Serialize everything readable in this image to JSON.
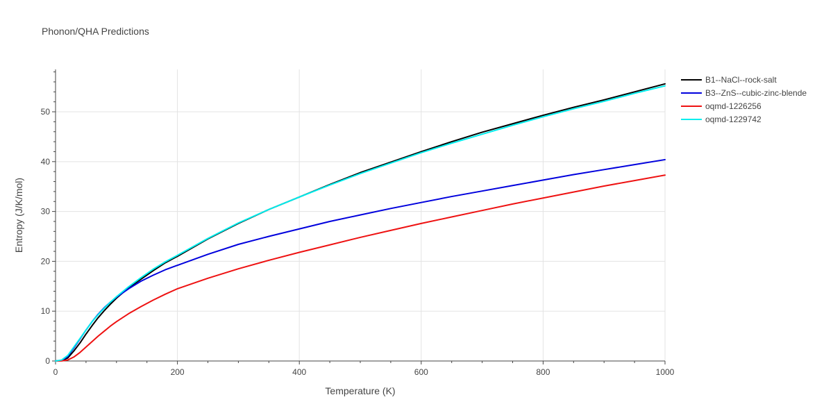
{
  "chart_data": {
    "type": "line",
    "title": "Phonon/QHA Predictions",
    "xlabel": "Temperature (K)",
    "ylabel": "Entropy (J/K/mol)",
    "xlim": [
      0,
      1000
    ],
    "ylim": [
      0,
      58.5
    ],
    "xticks": [
      0,
      200,
      400,
      600,
      800,
      1000
    ],
    "yticks": [
      0,
      10,
      20,
      30,
      40,
      50
    ],
    "grid": true,
    "legend_position": "top-right",
    "series": [
      {
        "name": "B1--NaCl--rock-salt",
        "color": "#000000",
        "x": [
          0,
          10,
          20,
          30,
          40,
          50,
          60,
          70,
          80,
          90,
          100,
          120,
          140,
          160,
          180,
          200,
          250,
          300,
          350,
          400,
          450,
          500,
          550,
          600,
          650,
          700,
          750,
          800,
          850,
          900,
          950,
          1000
        ],
        "y": [
          0,
          0.1,
          0.6,
          2.0,
          3.6,
          5.4,
          7.1,
          8.7,
          10.1,
          11.4,
          12.6,
          14.7,
          16.4,
          18.1,
          19.7,
          21.0,
          24.5,
          27.6,
          30.4,
          32.9,
          35.4,
          37.8,
          39.9,
          42.0,
          44.0,
          45.9,
          47.6,
          49.3,
          50.9,
          52.4,
          54.0,
          55.6
        ]
      },
      {
        "name": "B3--ZnS--cubic-zinc-blende",
        "color": "#0000dd",
        "x": [
          0,
          10,
          20,
          30,
          40,
          50,
          60,
          70,
          80,
          90,
          100,
          120,
          140,
          160,
          180,
          200,
          250,
          300,
          350,
          400,
          450,
          500,
          550,
          600,
          650,
          700,
          750,
          800,
          850,
          900,
          950,
          1000
        ],
        "y": [
          0,
          0.1,
          0.9,
          2.6,
          4.4,
          6.2,
          7.9,
          9.4,
          10.7,
          11.8,
          12.8,
          14.5,
          16.0,
          17.2,
          18.3,
          19.2,
          21.4,
          23.4,
          25.0,
          26.5,
          28.0,
          29.3,
          30.6,
          31.8,
          33.0,
          34.1,
          35.2,
          36.3,
          37.4,
          38.4,
          39.4,
          40.4
        ]
      },
      {
        "name": "oqmd-1226256",
        "color": "#ee1111",
        "x": [
          0,
          10,
          20,
          30,
          40,
          50,
          60,
          70,
          80,
          90,
          100,
          120,
          140,
          160,
          180,
          200,
          250,
          300,
          350,
          400,
          450,
          500,
          550,
          600,
          650,
          700,
          750,
          800,
          850,
          900,
          950,
          1000
        ],
        "y": [
          0,
          0.02,
          0.2,
          0.8,
          1.7,
          2.8,
          3.9,
          5.0,
          6.0,
          7.0,
          7.9,
          9.5,
          10.9,
          12.2,
          13.4,
          14.5,
          16.6,
          18.5,
          20.2,
          21.8,
          23.3,
          24.8,
          26.2,
          27.6,
          28.9,
          30.2,
          31.5,
          32.7,
          33.9,
          35.1,
          36.2,
          37.3
        ]
      },
      {
        "name": "oqmd-1229742",
        "color": "#00eeee",
        "x": [
          0,
          10,
          20,
          30,
          40,
          50,
          60,
          70,
          80,
          90,
          100,
          120,
          140,
          160,
          180,
          200,
          250,
          300,
          350,
          400,
          450,
          500,
          550,
          600,
          650,
          700,
          750,
          800,
          850,
          900,
          950,
          1000
        ],
        "y": [
          0,
          0.2,
          1.1,
          2.8,
          4.5,
          6.2,
          7.9,
          9.3,
          10.6,
          11.8,
          12.9,
          14.9,
          16.7,
          18.4,
          19.9,
          21.2,
          24.6,
          27.7,
          30.4,
          32.9,
          35.3,
          37.6,
          39.7,
          41.8,
          43.7,
          45.5,
          47.3,
          49.0,
          50.6,
          52.1,
          53.7,
          55.2
        ]
      }
    ]
  }
}
